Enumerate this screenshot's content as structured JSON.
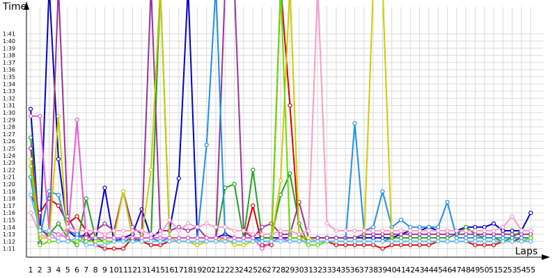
{
  "chart_data": {
    "type": "line",
    "title": "",
    "xlabel": "Laps",
    "ylabel": "Time",
    "xlim": [
      1,
      55
    ],
    "ylim": [
      "1:11",
      "1:41"
    ],
    "y_unit": "minutes:seconds",
    "grid": true,
    "legend": "none",
    "x_ticks": [
      "1",
      "2",
      "3",
      "4",
      "5",
      "6",
      "7",
      "8",
      "9",
      "10",
      "11",
      "12",
      "13",
      "14",
      "15",
      "16",
      "17",
      "18",
      "19",
      "20",
      "21",
      "22",
      "23",
      "24",
      "25",
      "26",
      "27",
      "28",
      "29",
      "30",
      "31",
      "32",
      "33",
      "34",
      "35",
      "36",
      "37",
      "38",
      "39",
      "40",
      "41",
      "42",
      "43",
      "44",
      "45",
      "46",
      "47",
      "48",
      "49",
      "50",
      "51",
      "52",
      "53",
      "54",
      "55"
    ],
    "y_ticks": [
      "1:11",
      "1:12",
      "1:13",
      "1:14",
      "1:15",
      "1:16",
      "1:17",
      "1:18",
      "1:19",
      "1:20",
      "1:21",
      "1:22",
      "1:23",
      "1:24",
      "1:25",
      "1:26",
      "1:27",
      "1:28",
      "1:29",
      "1:30",
      "1:31",
      "1:32",
      "1:33",
      "1:34",
      "1:35",
      "1:36",
      "1:37",
      "1:38",
      "1:39",
      "1:40",
      "1:41"
    ],
    "series": [
      {
        "color": "#0000cc",
        "values": [
          90.5,
          71.8,
          130,
          83.5,
          73.5,
          72.5,
          73.0,
          72.0,
          79.5,
          72.0,
          72.5,
          73.0,
          76.5,
          72.5,
          73.5,
          73.5,
          80.8,
          130,
          72.5,
          72.5,
          72.5,
          73.0,
          72.5,
          72.5,
          72.5,
          72.5,
          72.5,
          72.5,
          72.5,
          72.5,
          72.5,
          72.5,
          72.5,
          72.5,
          72.5,
          72.5,
          72.5,
          72.5,
          72.5,
          72.5,
          73.0,
          73.5,
          73.5,
          74.0,
          73.5,
          73.5,
          73.5,
          74.0,
          74.0,
          74.0,
          74.5,
          73.5,
          73.5,
          73.5,
          76.0
        ]
      },
      {
        "color": "#e00000",
        "values": [
          78.5,
          76.0,
          78.0,
          77.0,
          74.5,
          75.5,
          73.5,
          71.5,
          71.0,
          71.0,
          71.0,
          72.5,
          72.0,
          71.5,
          71.5,
          72.0,
          72.0,
          72.0,
          71.5,
          72.0,
          72.0,
          72.0,
          72.0,
          72.0,
          77.0,
          71.5,
          71.5,
          130,
          91.0,
          73.0,
          72.0,
          72.0,
          72.0,
          71.5,
          71.5,
          71.5,
          71.5,
          71.5,
          71.0,
          71.5,
          71.5,
          71.5,
          71.5,
          71.5,
          72.0,
          72.0,
          72.0,
          72.0,
          71.5,
          71.5,
          71.5,
          72.0,
          72.0,
          72.5,
          72.5
        ]
      },
      {
        "color": "#22a022",
        "values": [
          86.5,
          73.5,
          73.0,
          74.5,
          72.5,
          71.5,
          78.0,
          72.5,
          72.0,
          72.0,
          72.0,
          72.5,
          72.5,
          72.5,
          130,
          72.5,
          72.5,
          72.5,
          72.5,
          72.5,
          72.5,
          79.5,
          80.0,
          72.5,
          82.0,
          72.5,
          72.5,
          78.5,
          81.5,
          74.5,
          71.5,
          71.5,
          72.0,
          72.0,
          72.0,
          72.0,
          72.0,
          72.0,
          72.0,
          72.5,
          72.5,
          72.5,
          72.5,
          72.5,
          72.5,
          72.5,
          73.0,
          74.0,
          73.0,
          72.5,
          72.5,
          72.0,
          72.5,
          73.5,
          73.5
        ]
      },
      {
        "color": "#993399",
        "values": [
          85.0,
          74.0,
          72.5,
          130,
          75.5,
          73.0,
          72.5,
          73.5,
          74.5,
          73.5,
          79.0,
          74.0,
          73.0,
          130,
          73.5,
          73.5,
          74.0,
          73.5,
          74.0,
          72.5,
          72.5,
          130,
          130,
          73.5,
          72.5,
          74.0,
          74.5,
          73.0,
          73.0,
          77.5,
          72.5,
          72.5,
          72.5,
          72.5,
          72.5,
          72.5,
          73.0,
          73.0,
          73.0,
          73.0,
          73.0,
          73.0,
          73.0,
          73.0,
          73.0,
          73.0,
          73.0,
          73.0,
          73.0,
          73.0,
          73.0,
          73.0,
          73.0,
          73.0,
          73.0
        ]
      },
      {
        "color": "#1e8fe8",
        "values": [
          81.0,
          72.5,
          79.0,
          78.5,
          73.5,
          73.0,
          72.0,
          72.5,
          72.5,
          72.5,
          72.0,
          72.0,
          72.5,
          72.5,
          72.0,
          72.5,
          72.5,
          72.5,
          72.5,
          85.5,
          130,
          72.5,
          72.5,
          72.5,
          72.5,
          72.0,
          72.0,
          72.5,
          72.0,
          72.0,
          72.0,
          72.0,
          72.0,
          72.0,
          72.0,
          88.5,
          73.5,
          74.0,
          79.0,
          74.0,
          75.0,
          74.0,
          74.0,
          74.0,
          74.0,
          77.5,
          72.5,
          72.5,
          72.5,
          72.5,
          72.5,
          72.5,
          72.5,
          72.5,
          72.5
        ]
      },
      {
        "color": "#cccc00",
        "values": [
          83.5,
          72.5,
          72.5,
          89.5,
          72.0,
          72.0,
          72.5,
          72.5,
          72.5,
          72.5,
          79.0,
          72.5,
          72.5,
          82.0,
          130,
          72.5,
          72.0,
          72.0,
          71.5,
          72.0,
          72.0,
          72.5,
          71.5,
          71.5,
          72.0,
          72.0,
          72.0,
          80.5,
          130,
          72.5,
          72.5,
          72.0,
          72.0,
          72.0,
          72.0,
          72.0,
          72.0,
          130,
          130,
          72.0,
          72.0,
          72.0,
          72.0,
          72.0,
          72.0,
          72.0,
          72.0,
          72.0,
          72.0,
          72.0,
          72.0,
          72.0,
          72.0,
          72.0,
          72.0
        ]
      },
      {
        "color": "#ee55dd",
        "values": [
          89.5,
          89.5,
          73.5,
          73.0,
          72.5,
          89.0,
          72.5,
          72.5,
          72.5,
          72.5,
          72.5,
          72.5,
          72.5,
          72.5,
          72.5,
          72.5,
          72.5,
          72.5,
          72.5,
          72.5,
          72.5,
          72.5,
          72.5,
          72.5,
          72.5,
          71.0,
          72.0,
          72.5,
          72.0,
          72.0,
          72.0,
          72.0,
          72.0,
          72.0,
          72.0,
          72.0,
          72.0,
          72.0,
          72.0,
          72.0,
          72.0,
          72.0,
          72.0,
          72.0,
          72.0,
          72.0,
          72.0,
          72.0,
          72.0,
          72.0,
          72.0,
          72.0,
          72.0,
          72.0,
          72.0
        ]
      },
      {
        "color": "#ff99cc",
        "values": [
          76.0,
          73.0,
          72.5,
          72.5,
          74.0,
          73.5,
          73.5,
          73.5,
          73.0,
          73.5,
          73.5,
          73.5,
          73.5,
          73.0,
          73.0,
          75.0,
          73.5,
          74.5,
          74.0,
          74.5,
          74.0,
          74.0,
          73.5,
          73.5,
          73.0,
          73.0,
          73.0,
          73.5,
          73.5,
          73.0,
          73.5,
          130,
          74.5,
          73.5,
          73.5,
          73.5,
          73.5,
          73.5,
          73.5,
          73.5,
          73.5,
          73.5,
          73.5,
          73.5,
          73.5,
          73.5,
          73.5,
          73.5,
          73.5,
          73.5,
          73.5,
          74.0,
          75.5,
          73.5,
          73.5
        ]
      },
      {
        "color": "#66dd00",
        "values": [
          82.5,
          71.5,
          72.0,
          72.0,
          72.0,
          72.0,
          72.0,
          72.0,
          72.0,
          72.0,
          72.0,
          72.0,
          72.0,
          72.0,
          72.0,
          72.0,
          72.0,
          72.0,
          72.0,
          72.0,
          72.0,
          72.0,
          72.0,
          72.0,
          72.0,
          72.0,
          72.0,
          130,
          72.5,
          72.5,
          71.5,
          71.5,
          72.0,
          72.0,
          72.0,
          72.0,
          72.0,
          72.0,
          72.0,
          72.0,
          72.0,
          72.0,
          72.0,
          72.0,
          72.0,
          72.0,
          72.0,
          72.0,
          72.0,
          72.0,
          72.0,
          72.0,
          72.0,
          72.0,
          72.5
        ]
      },
      {
        "color": "#66bbff",
        "values": [
          78.5,
          73.5,
          73.5,
          72.0,
          72.0,
          72.5,
          71.5,
          71.5,
          71.5,
          72.0,
          72.0,
          72.0,
          72.0,
          72.0,
          72.0,
          72.0,
          72.0,
          72.0,
          72.0,
          72.0,
          72.0,
          72.0,
          72.0,
          72.0,
          72.0,
          72.0,
          72.0,
          72.0,
          72.0,
          72.0,
          72.0,
          72.0,
          72.0,
          72.0,
          72.0,
          72.0,
          72.0,
          72.0,
          72.0,
          72.0,
          72.0,
          72.0,
          72.0,
          72.0,
          72.0,
          72.0,
          72.0,
          72.0,
          72.0,
          72.0,
          72.0,
          72.0,
          72.0,
          72.0,
          72.0
        ]
      }
    ]
  }
}
